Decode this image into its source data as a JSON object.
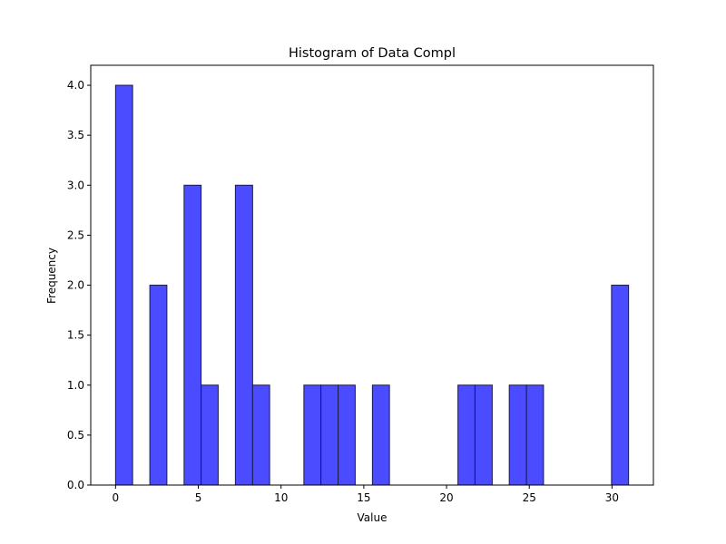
{
  "chart_data": {
    "type": "bar",
    "title": "Histogram of Data Compl",
    "xlabel": "Value",
    "ylabel": "Frequency",
    "xlim": [
      -1.5,
      32.5
    ],
    "ylim": [
      0,
      4.2
    ],
    "grid": false,
    "bar_color": "#4b4bff",
    "edge_color": "#1a1a4d",
    "xticks": [
      0,
      5,
      10,
      15,
      20,
      25,
      30
    ],
    "xtick_labels": [
      "0",
      "5",
      "10",
      "15",
      "20",
      "25",
      "30"
    ],
    "yticks": [
      0,
      0.5,
      1,
      1.5,
      2,
      2.5,
      3,
      3.5,
      4
    ],
    "ytick_labels": [
      "0.0",
      "0.5",
      "1.0",
      "1.5",
      "2.0",
      "2.5",
      "3.0",
      "3.5",
      "4.0"
    ],
    "bins": [
      {
        "start": 0.0,
        "end": 1.03,
        "count": 4
      },
      {
        "start": 2.07,
        "end": 3.1,
        "count": 2
      },
      {
        "start": 4.14,
        "end": 5.17,
        "count": 3
      },
      {
        "start": 5.17,
        "end": 6.2,
        "count": 1
      },
      {
        "start": 7.24,
        "end": 8.28,
        "count": 3
      },
      {
        "start": 8.28,
        "end": 9.31,
        "count": 1
      },
      {
        "start": 11.38,
        "end": 12.41,
        "count": 1
      },
      {
        "start": 12.41,
        "end": 13.45,
        "count": 1
      },
      {
        "start": 13.45,
        "end": 14.48,
        "count": 1
      },
      {
        "start": 15.52,
        "end": 16.55,
        "count": 1
      },
      {
        "start": 20.69,
        "end": 21.72,
        "count": 1
      },
      {
        "start": 21.72,
        "end": 22.76,
        "count": 1
      },
      {
        "start": 23.79,
        "end": 24.83,
        "count": 1
      },
      {
        "start": 24.83,
        "end": 25.86,
        "count": 1
      },
      {
        "start": 29.97,
        "end": 31.0,
        "count": 2
      }
    ]
  }
}
